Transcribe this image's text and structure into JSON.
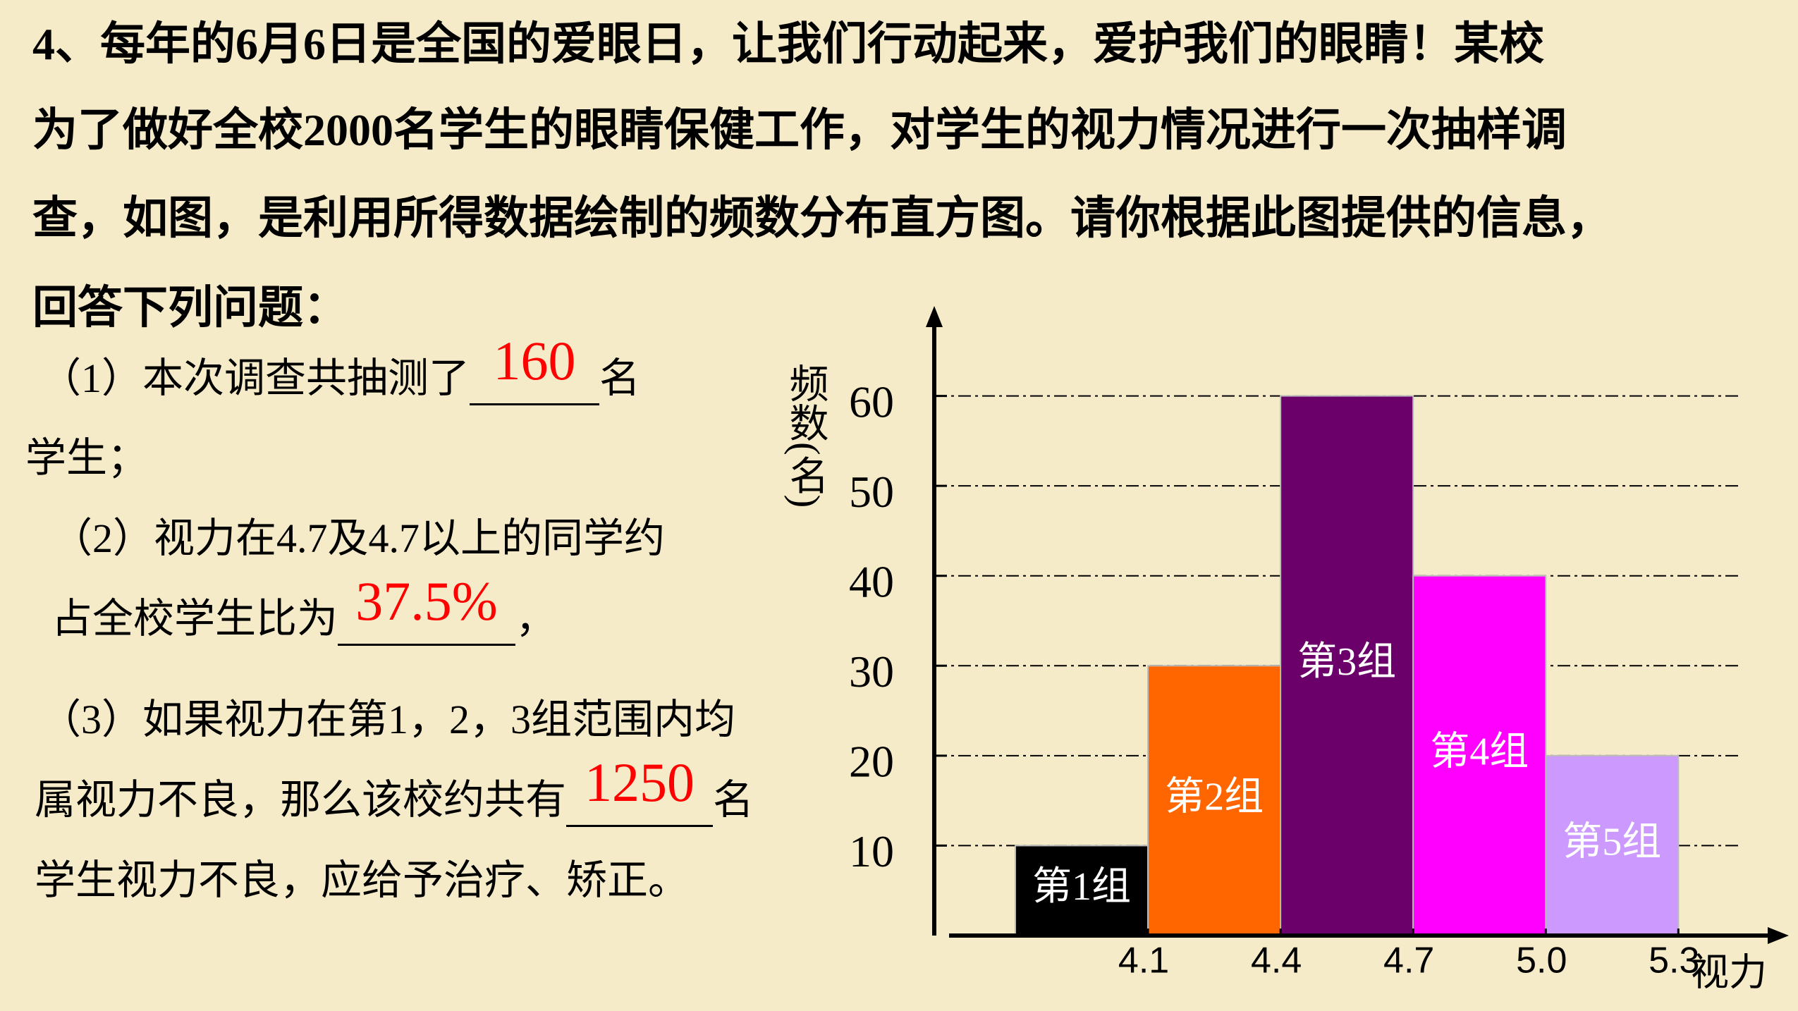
{
  "question": {
    "stem_lines": [
      "4、每年的6月6日是全国的爱眼日，让我们行动起来，爱护我们的眼睛！某校",
      "为了做好全校2000名学生的眼睛保健工作，对学生的视力情况进行一次抽样调",
      "查，如图，是利用所得数据绘制的频数分布直方图。请你根据此图提供的信息，",
      "回答下列问题："
    ],
    "parts": [
      {
        "lines": [
          {
            "text": "（1）本次调查共抽测了",
            "answer": "160",
            "after": "名"
          },
          {
            "text": "学生；"
          }
        ]
      },
      {
        "lines": [
          {
            "text": "（2）视力在4.7及4.7以上的同学约"
          },
          {
            "text": "占全校学生比为",
            "answer": "37.5%",
            "after": "，"
          }
        ]
      },
      {
        "lines": [
          {
            "text": "（3）如果视力在第1，2，3组范围内均"
          },
          {
            "text": "属视力不良，那么该校约共有",
            "answer": "1250",
            "after": "名"
          },
          {
            "text": "学生视力不良，应给予治疗、矫正。"
          }
        ]
      }
    ]
  },
  "chart_data": {
    "type": "histogram",
    "y_label": "频数(名)",
    "x_label": "视力",
    "bins": [
      3.8,
      4.1,
      4.4,
      4.7,
      5.0,
      5.3
    ],
    "values": [
      10,
      30,
      60,
      40,
      20
    ],
    "bar_labels": [
      "第1组",
      "第2组",
      "第3组",
      "第4组",
      "第5组"
    ],
    "colors": [
      "#000000",
      "#ff6600",
      "#6b006b",
      "#ff00ff",
      "#cc99ff"
    ],
    "xlim": [
      3.65,
      5.55
    ],
    "ylim": [
      0,
      70
    ],
    "xticks": [
      4.1,
      4.4,
      4.7,
      {
        "value": 5.0,
        "label": "5.0"
      },
      5.3
    ],
    "yticks": [
      10,
      20,
      30,
      40,
      50,
      60
    ],
    "grid": true
  }
}
